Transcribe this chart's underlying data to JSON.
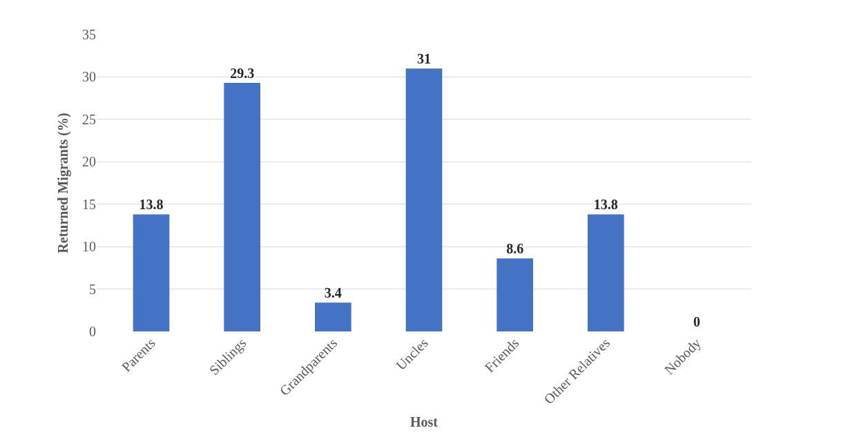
{
  "chart_data": {
    "type": "bar",
    "xlabel": "Host",
    "ylabel": "Returned Migrants (%)",
    "categories": [
      "Parents",
      "Siblings",
      "Grandparents",
      "Uncles",
      "Friends",
      "Other Relatives",
      "Nobody"
    ],
    "values": [
      13.8,
      29.3,
      3.4,
      31,
      8.6,
      13.8,
      0
    ],
    "color": "#4472c4",
    "ylim": [
      0,
      35
    ],
    "yticks": [
      0,
      5,
      10,
      15,
      20,
      25,
      30,
      35
    ],
    "grid": "y",
    "data_labels": true
  }
}
